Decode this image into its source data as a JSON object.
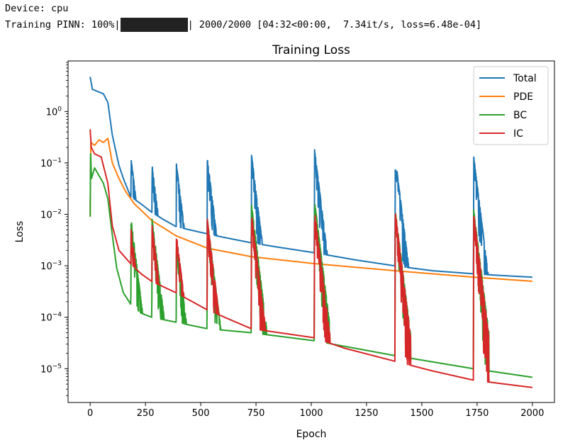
{
  "output": {
    "device_line": "Device: cpu",
    "progress_prefix": "Training PINN: 100%|",
    "progress_suffix": "| 2000/2000 [04:32<00:00,  7.34it/s, loss=6.48e-04]",
    "progress_fraction": 1.0
  },
  "chart_data": {
    "type": "line",
    "title": "Training Loss",
    "xlabel": "Epoch",
    "ylabel": "Loss",
    "xlim": [
      -100,
      2100
    ],
    "ylim": [
      2.2e-06,
      9.6
    ],
    "yscale": "log",
    "grid": false,
    "legend_position": "upper right",
    "xticks": [
      0,
      250,
      500,
      750,
      1000,
      1250,
      1500,
      1750,
      2000
    ],
    "yticks": [
      1,
      0.1,
      0.01,
      0.001,
      0.0001,
      1e-05
    ],
    "ytick_labels": [
      {
        "base": "10",
        "exp": "0"
      },
      {
        "base": "10",
        "exp": "−1"
      },
      {
        "base": "10",
        "exp": "−2"
      },
      {
        "base": "10",
        "exp": "−3"
      },
      {
        "base": "10",
        "exp": "−4"
      },
      {
        "base": "10",
        "exp": "−5"
      }
    ],
    "series": [
      {
        "name": "Total",
        "color": "#1f77b4",
        "points": [
          [
            0,
            4.7
          ],
          [
            10,
            2.7
          ],
          [
            60,
            2.2
          ],
          [
            80,
            1.5
          ],
          [
            100,
            0.35
          ],
          [
            130,
            0.09
          ],
          [
            150,
            0.05
          ],
          [
            183,
            0.022
          ],
          [
            230,
            0.016
          ],
          [
            278,
            0.011
          ],
          [
            330,
            0.008
          ],
          [
            388,
            0.0058
          ],
          [
            450,
            0.005
          ],
          [
            528,
            0.0042
          ],
          [
            600,
            0.0036
          ],
          [
            728,
            0.0028
          ],
          [
            850,
            0.0023
          ],
          [
            1012,
            0.0018
          ],
          [
            1200,
            0.0013
          ],
          [
            1376,
            0.001
          ],
          [
            1550,
            0.0008
          ],
          [
            1732,
            0.0007
          ],
          [
            1850,
            0.00065
          ],
          [
            2000,
            0.0006
          ]
        ],
        "spikes": [
          [
            185,
            0.12
          ],
          [
            280,
            0.09
          ],
          [
            390,
            0.095
          ],
          [
            530,
            0.12
          ],
          [
            730,
            0.14
          ],
          [
            1015,
            0.18
          ],
          [
            1380,
            0.13
          ],
          [
            1735,
            0.13
          ]
        ]
      },
      {
        "name": "PDE",
        "color": "#ff7f0e",
        "points": [
          [
            0,
            0.009
          ],
          [
            3,
            0.25
          ],
          [
            20,
            0.22
          ],
          [
            40,
            0.28
          ],
          [
            60,
            0.25
          ],
          [
            80,
            0.3
          ],
          [
            100,
            0.1
          ],
          [
            130,
            0.05
          ],
          [
            160,
            0.028
          ],
          [
            200,
            0.016
          ],
          [
            280,
            0.0075
          ],
          [
            390,
            0.0038
          ],
          [
            530,
            0.0022
          ],
          [
            730,
            0.0015
          ],
          [
            1015,
            0.0011
          ],
          [
            1380,
            0.0008
          ],
          [
            1735,
            0.0006
          ],
          [
            2000,
            0.0005
          ]
        ],
        "spikes": []
      },
      {
        "name": "BC",
        "color": "#2ca02c",
        "points": [
          [
            0,
            0.009
          ],
          [
            2,
            0.15
          ],
          [
            6,
            0.05
          ],
          [
            20,
            0.08
          ],
          [
            60,
            0.04
          ],
          [
            80,
            0.02
          ],
          [
            100,
            0.004
          ],
          [
            120,
            0.0009
          ],
          [
            150,
            0.0003
          ],
          [
            183,
            0.00018
          ],
          [
            230,
            0.00012
          ],
          [
            278,
            0.0001
          ],
          [
            388,
            8e-05
          ],
          [
            528,
            6e-05
          ],
          [
            728,
            5e-05
          ],
          [
            1012,
            3.5e-05
          ],
          [
            1376,
            1.8e-05
          ],
          [
            1732,
            1e-05
          ],
          [
            2000,
            6.8e-06
          ]
        ],
        "spikes": [
          [
            185,
            0.008
          ],
          [
            280,
            0.008
          ],
          [
            390,
            0.003
          ],
          [
            530,
            0.008
          ],
          [
            730,
            0.015
          ],
          [
            1015,
            0.018
          ],
          [
            1380,
            0.012
          ],
          [
            1735,
            0.012
          ]
        ]
      },
      {
        "name": "IC",
        "color": "#d62728",
        "points": [
          [
            0,
            0.45
          ],
          [
            5,
            0.2
          ],
          [
            20,
            0.15
          ],
          [
            50,
            0.13
          ],
          [
            80,
            0.04
          ],
          [
            100,
            0.006
          ],
          [
            130,
            0.002
          ],
          [
            183,
            0.0011
          ],
          [
            230,
            0.0007
          ],
          [
            278,
            0.0005
          ],
          [
            388,
            0.0003
          ],
          [
            528,
            0.00014
          ],
          [
            728,
            6e-05
          ],
          [
            1012,
            4e-05
          ],
          [
            1150,
            2.5e-05
          ],
          [
            1376,
            1.4e-05
          ],
          [
            1550,
            9e-06
          ],
          [
            1732,
            6e-06
          ],
          [
            2000,
            4.3e-06
          ]
        ],
        "spikes": [
          [
            185,
            0.005
          ],
          [
            280,
            0.006
          ],
          [
            390,
            0.004
          ],
          [
            530,
            0.008
          ],
          [
            730,
            0.01
          ],
          [
            1015,
            0.012
          ],
          [
            1380,
            0.011
          ],
          [
            1735,
            0.01
          ]
        ]
      }
    ]
  }
}
